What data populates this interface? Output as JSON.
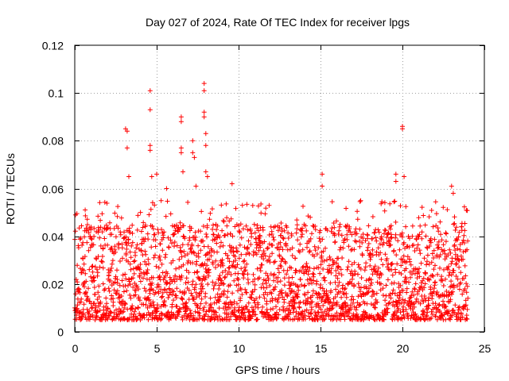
{
  "chart_data": {
    "type": "scatter",
    "title": "Day 027 of 2024, Rate Of TEC Index for receiver lpgs",
    "xlabel": "GPS time / hours",
    "ylabel": "ROTI / TECUs",
    "xlim": [
      0,
      25
    ],
    "ylim": [
      0,
      0.12
    ],
    "x_ticks": [
      0,
      5,
      10,
      15,
      20,
      25
    ],
    "x_tick_labels": [
      "0",
      "5",
      "10",
      "15",
      "20",
      "25"
    ],
    "y_ticks": [
      0,
      0.02,
      0.04,
      0.06,
      0.08,
      0.1,
      0.12
    ],
    "y_tick_labels": [
      "0",
      "0.02",
      "0.04",
      "0.06",
      "0.08",
      "0.1",
      "0.12"
    ],
    "grid": true,
    "marker": "plus",
    "color": "#ff0000",
    "series": [
      {
        "name": "ROTI",
        "x_start": 0,
        "x_end": 24,
        "typical_range": [
          0.005,
          0.045
        ],
        "notable_points": [
          {
            "x": 3.1,
            "y": 0.085
          },
          {
            "x": 3.2,
            "y": 0.084
          },
          {
            "x": 3.2,
            "y": 0.077
          },
          {
            "x": 3.3,
            "y": 0.065
          },
          {
            "x": 4.6,
            "y": 0.101
          },
          {
            "x": 4.6,
            "y": 0.093
          },
          {
            "x": 4.6,
            "y": 0.078
          },
          {
            "x": 4.6,
            "y": 0.076
          },
          {
            "x": 4.7,
            "y": 0.065
          },
          {
            "x": 5.0,
            "y": 0.066
          },
          {
            "x": 5.6,
            "y": 0.06
          },
          {
            "x": 6.5,
            "y": 0.09
          },
          {
            "x": 6.5,
            "y": 0.088
          },
          {
            "x": 6.5,
            "y": 0.077
          },
          {
            "x": 6.5,
            "y": 0.075
          },
          {
            "x": 6.6,
            "y": 0.067
          },
          {
            "x": 7.2,
            "y": 0.08
          },
          {
            "x": 7.2,
            "y": 0.075
          },
          {
            "x": 7.3,
            "y": 0.073
          },
          {
            "x": 7.4,
            "y": 0.061
          },
          {
            "x": 7.9,
            "y": 0.104
          },
          {
            "x": 7.9,
            "y": 0.101
          },
          {
            "x": 7.9,
            "y": 0.092
          },
          {
            "x": 7.9,
            "y": 0.09
          },
          {
            "x": 8.0,
            "y": 0.083
          },
          {
            "x": 8.0,
            "y": 0.078
          },
          {
            "x": 8.0,
            "y": 0.067
          },
          {
            "x": 8.1,
            "y": 0.065
          },
          {
            "x": 9.6,
            "y": 0.062
          },
          {
            "x": 15.1,
            "y": 0.066
          },
          {
            "x": 15.1,
            "y": 0.061
          },
          {
            "x": 19.6,
            "y": 0.066
          },
          {
            "x": 19.6,
            "y": 0.063
          },
          {
            "x": 20.0,
            "y": 0.086
          },
          {
            "x": 20.0,
            "y": 0.085
          },
          {
            "x": 20.1,
            "y": 0.065
          },
          {
            "x": 23.0,
            "y": 0.061
          },
          {
            "x": 23.1,
            "y": 0.058
          }
        ]
      }
    ]
  }
}
